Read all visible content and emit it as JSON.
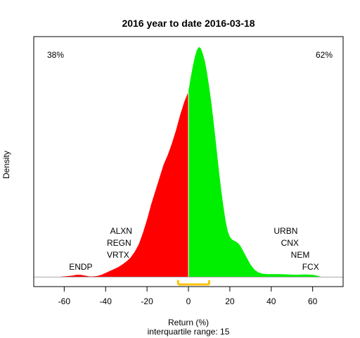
{
  "chart_data": {
    "type": "area",
    "title": "2016  year to date 2016-03-18",
    "xlabel": "Return (%)",
    "ylabel": "Density",
    "subtitle": "interquartile range: 15",
    "xlim": [
      -72,
      72
    ],
    "ylim": [
      0,
      0.062
    ],
    "x_ticks": [
      -60,
      -40,
      -20,
      0,
      20,
      40,
      60
    ],
    "x_tick_labels": [
      "-60",
      "-40",
      "-20",
      "0",
      "20",
      "40",
      "60"
    ],
    "grid": false,
    "legend": "none",
    "pct_negative": "38%",
    "pct_positive": "62%",
    "colors": {
      "negative": "#ff0000",
      "positive": "#00ee00",
      "iqr_bracket": "#ffc000",
      "negative_label": "#cc0000",
      "positive_label": "#009900"
    },
    "interquartile": {
      "q1": -5,
      "q3": 10
    },
    "density": {
      "x": [
        -62,
        -56,
        -54,
        -52,
        -50,
        -48,
        -46,
        -44,
        -42,
        -40,
        -38,
        -36,
        -34,
        -32,
        -30,
        -28,
        -26,
        -24,
        -22,
        -20,
        -18,
        -16,
        -14,
        -12,
        -10,
        -8,
        -6,
        -4,
        -2,
        -0.1,
        0.1,
        1,
        2,
        3,
        4,
        5,
        6,
        7,
        8,
        9,
        10,
        11,
        12,
        13,
        14,
        15,
        16,
        17,
        18,
        19,
        20,
        21,
        22,
        23,
        24,
        25,
        26,
        28,
        30,
        32,
        34,
        36,
        38,
        40,
        44,
        48,
        52,
        56,
        60,
        62,
        64
      ],
      "y": [
        0,
        0.0003,
        0.0005,
        0.0005,
        0.0003,
        0.0001,
        0.0001,
        0.0002,
        0.0005,
        0.001,
        0.0015,
        0.002,
        0.0025,
        0.0032,
        0.004,
        0.005,
        0.0065,
        0.0085,
        0.0115,
        0.015,
        0.019,
        0.0225,
        0.026,
        0.0295,
        0.032,
        0.035,
        0.0385,
        0.0425,
        0.046,
        0.0485,
        0.049,
        0.052,
        0.055,
        0.0575,
        0.0595,
        0.0604,
        0.06,
        0.0585,
        0.0565,
        0.0535,
        0.05,
        0.046,
        0.0415,
        0.0365,
        0.0315,
        0.0265,
        0.022,
        0.018,
        0.0145,
        0.012,
        0.0105,
        0.0098,
        0.0095,
        0.0092,
        0.0088,
        0.0082,
        0.0072,
        0.0052,
        0.0032,
        0.0018,
        0.0011,
        0.0008,
        0.0007,
        0.0007,
        0.0007,
        0.0006,
        0.0005,
        0.0006,
        0.0005,
        0.0003,
        0
      ]
    },
    "annotations": [
      {
        "text": "ENDP",
        "x": -52,
        "side": "negative"
      },
      {
        "text": "VRTX",
        "x": -34,
        "side": "negative"
      },
      {
        "text": "REGN",
        "x": -33.5,
        "side": "negative"
      },
      {
        "text": "ALXN",
        "x": -32.5,
        "side": "negative"
      },
      {
        "text": "FCX",
        "x": 59,
        "side": "positive"
      },
      {
        "text": "NEM",
        "x": 54,
        "side": "positive"
      },
      {
        "text": "CNX",
        "x": 49,
        "side": "positive"
      },
      {
        "text": "URBN",
        "x": 47,
        "side": "positive"
      }
    ]
  }
}
